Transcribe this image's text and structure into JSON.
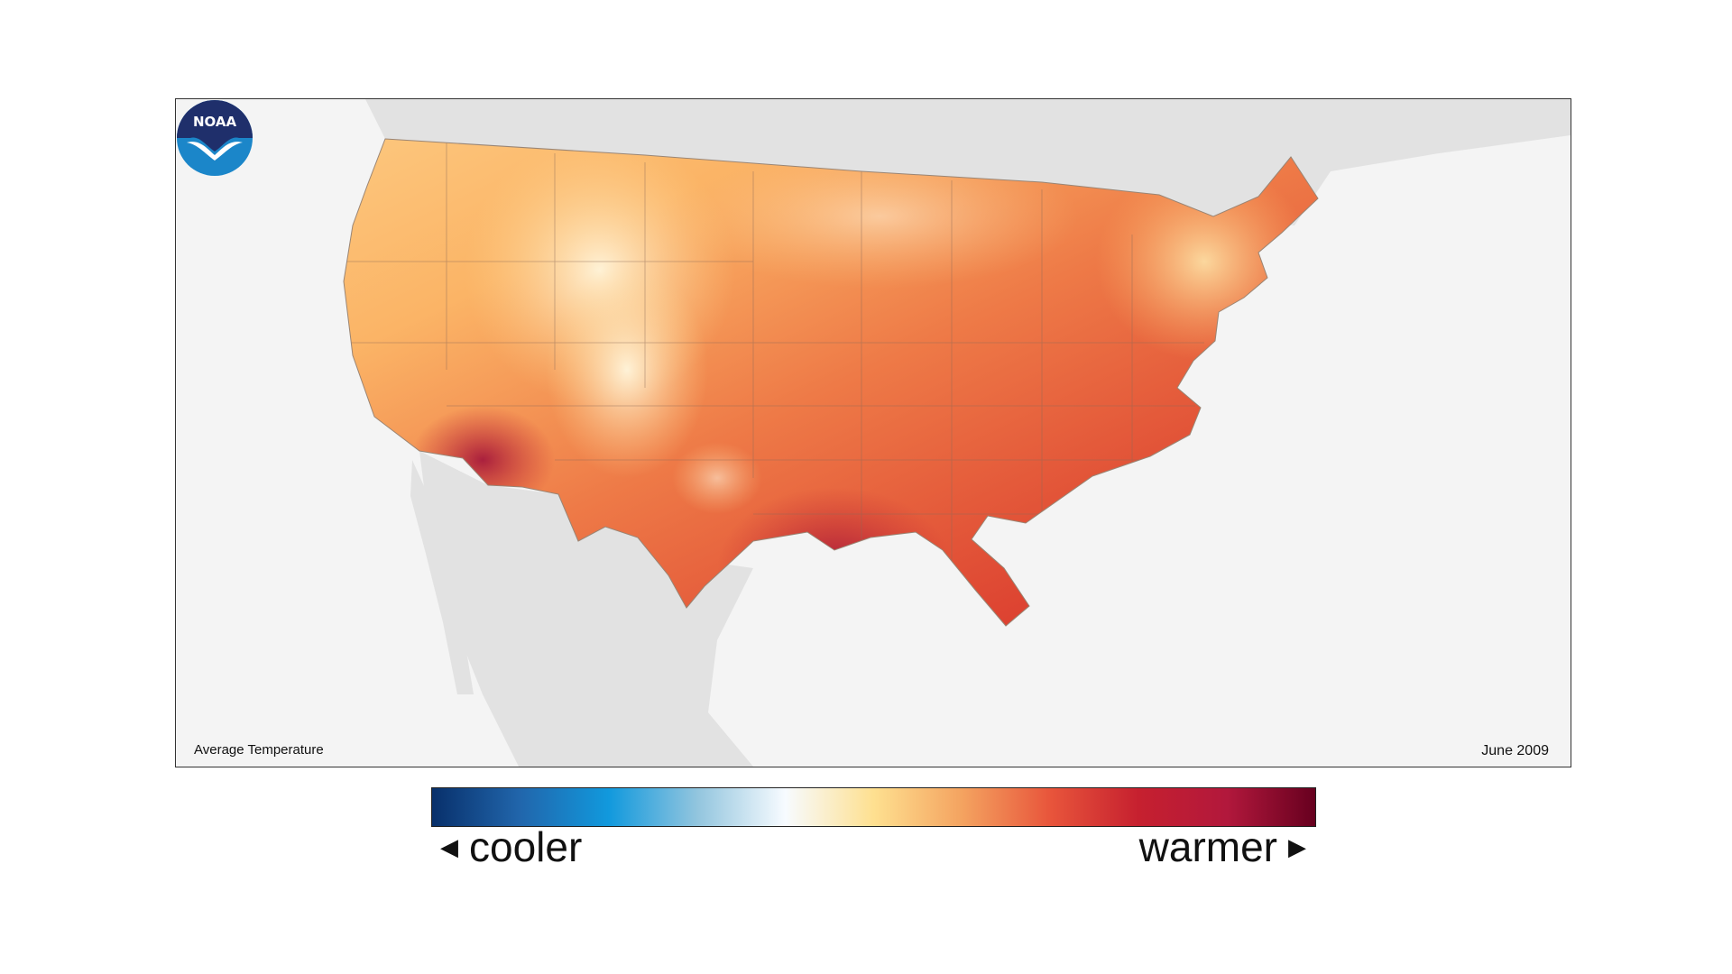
{
  "map": {
    "title": "Average Temperature",
    "date": "June 2009",
    "region": "Contiguous United States",
    "logo_text": "NOAA",
    "background_color": "#f4f4f4",
    "land_outside_color": "#e2e2e2"
  },
  "legend": {
    "cool_label": "cooler",
    "warm_label": "warmer",
    "left_arrow_icon": "triangle-left-icon",
    "right_arrow_icon": "triangle-right-icon",
    "gradient_colors": [
      "#08306b",
      "#2166ac",
      "#1199dd",
      "#92c5de",
      "#f7fbff",
      "#fee090",
      "#f4a360",
      "#e8553b",
      "#c6202f",
      "#b2183c",
      "#67001f"
    ]
  }
}
